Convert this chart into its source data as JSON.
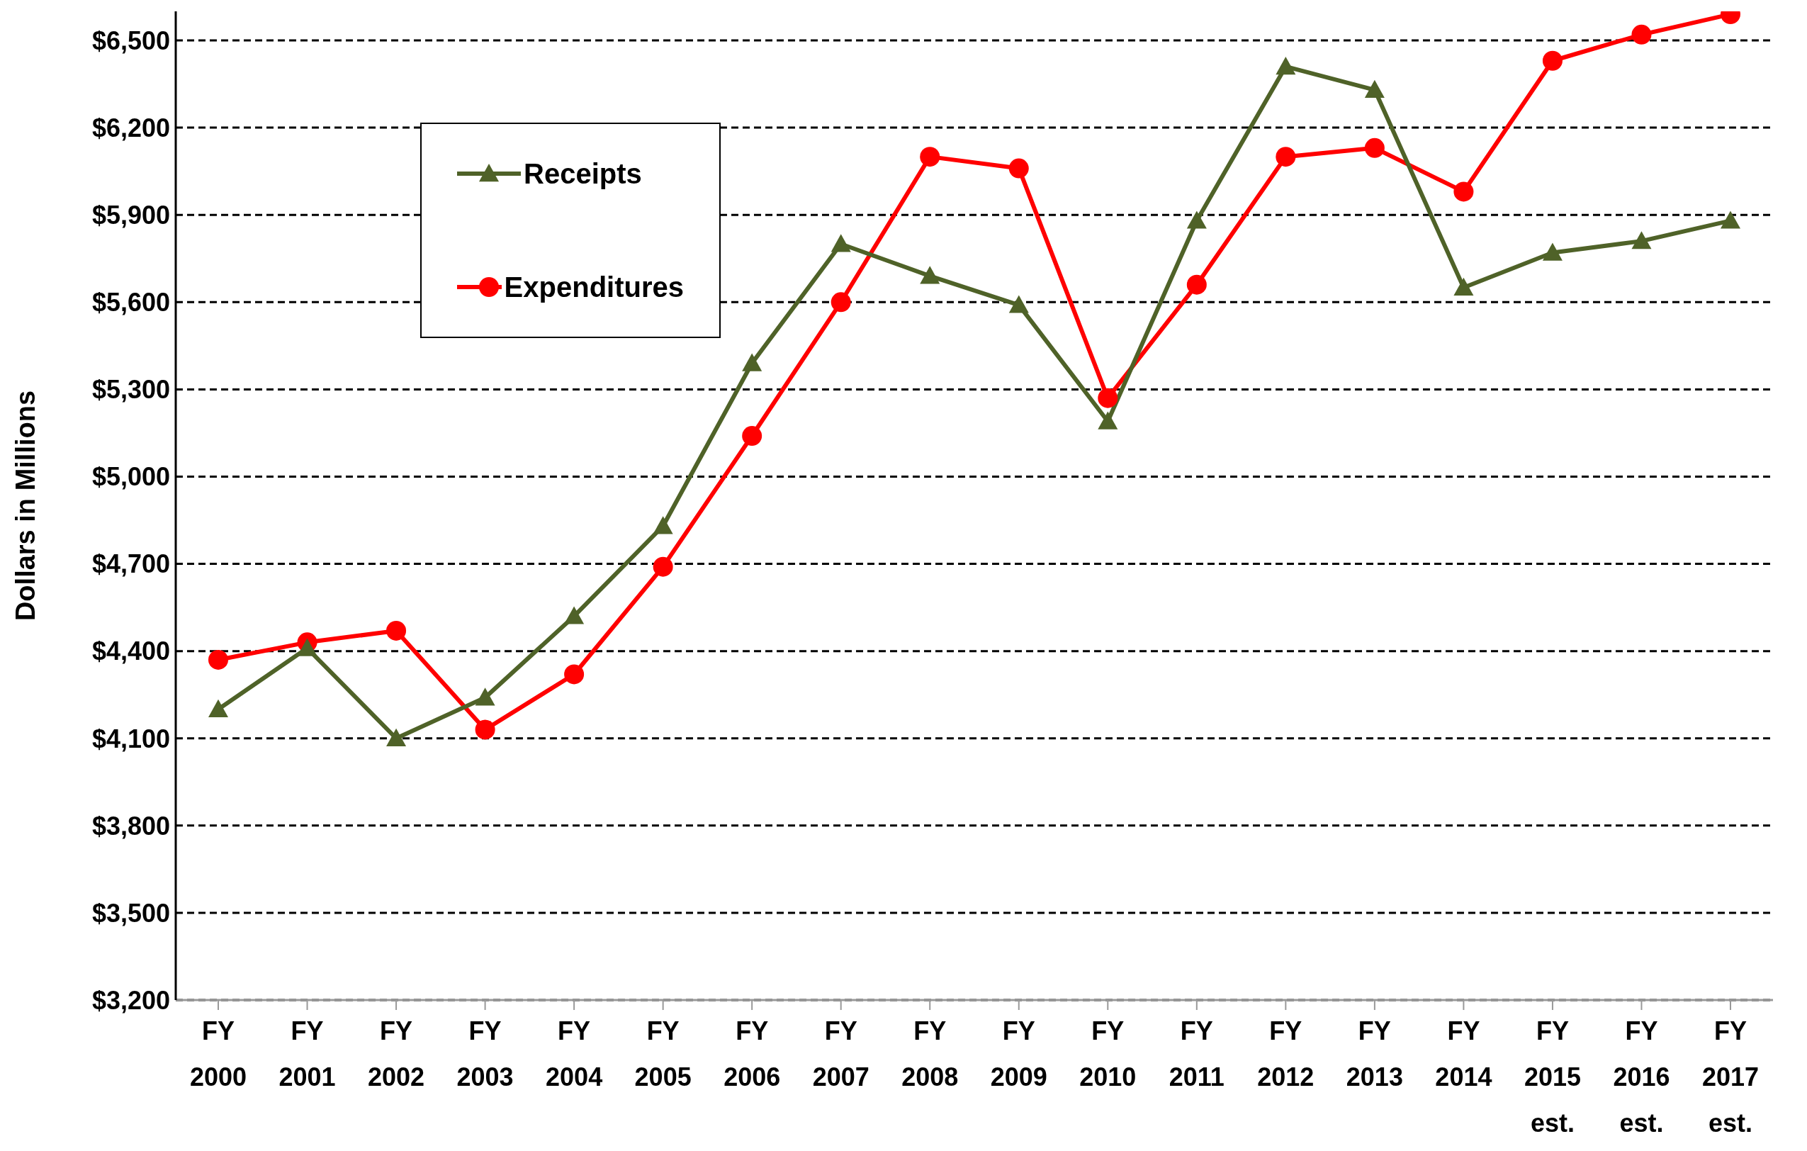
{
  "chart_data": {
    "type": "line",
    "ylabel": "Dollars in Millions",
    "categories": [
      "FY\n2000",
      "FY\n2001",
      "FY\n2002",
      "FY\n2003",
      "FY\n2004",
      "FY\n2005",
      "FY\n2006",
      "FY\n2007",
      "FY\n2008",
      "FY\n2009",
      "FY\n2010",
      "FY\n2011",
      "FY\n2012",
      "FY\n2013",
      "FY\n2014",
      "FY\n2015\nest.",
      "FY\n2016\nest.",
      "FY\n2017\nest."
    ],
    "series": [
      {
        "name": "Receipts",
        "color": "#4f6228",
        "marker": "triangle",
        "values": [
          4200,
          4410,
          4100,
          4240,
          4520,
          4830,
          5390,
          5800,
          5690,
          5590,
          5190,
          5880,
          6410,
          6330,
          5650,
          5770,
          5810,
          5880
        ]
      },
      {
        "name": "Expenditures",
        "color": "#ff0000",
        "marker": "circle",
        "values": [
          4370,
          4430,
          4470,
          4130,
          4320,
          4690,
          5140,
          5600,
          6100,
          6060,
          5270,
          5660,
          6100,
          6130,
          5980,
          6430,
          6520,
          6590
        ]
      }
    ],
    "ylim": [
      3200,
      6600
    ],
    "yticks": [
      {
        "value": 3200,
        "label": "$3,200"
      },
      {
        "value": 3500,
        "label": "$3,500"
      },
      {
        "value": 3800,
        "label": "$3,800"
      },
      {
        "value": 4100,
        "label": "$4,100"
      },
      {
        "value": 4400,
        "label": "$4,400"
      },
      {
        "value": 4700,
        "label": "$4,700"
      },
      {
        "value": 5000,
        "label": "$5,000"
      },
      {
        "value": 5300,
        "label": "$5,300"
      },
      {
        "value": 5600,
        "label": "$5,600"
      },
      {
        "value": 5900,
        "label": "$5,900"
      },
      {
        "value": 6200,
        "label": "$6,200"
      },
      {
        "value": 6500,
        "label": "$6,500"
      }
    ],
    "grid": "y",
    "legend": "top left",
    "line_style": "solid"
  }
}
